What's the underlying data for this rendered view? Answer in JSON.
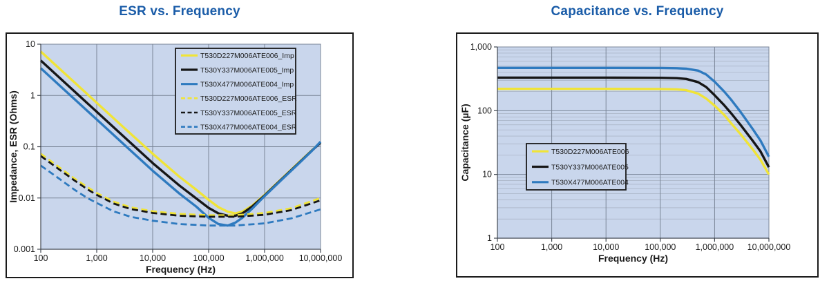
{
  "theme": {
    "title_color": "#1a5ca8",
    "plot_bg": "#c9d6ec",
    "grid_major": "#7a8597",
    "grid_minor": "#9fa9ba",
    "axis_line": "#3f4650",
    "text_color": "#1a1a1a",
    "frame_border": "#1a1a1a",
    "legend_bg": "#c9d6ec",
    "legend_border": "#1a1a1a",
    "series_yellow": "#f0e437",
    "series_black": "#161616",
    "series_blue": "#2e7abf"
  },
  "chart_data": [
    {
      "type": "line",
      "title": "ESR vs. Frequency",
      "xlabel": "Frequency (Hz)",
      "ylabel": "Impedance, ESR (Ohms)",
      "x_scale": "log",
      "y_scale": "log",
      "xlim": [
        100,
        10000000
      ],
      "ylim": [
        0.001,
        10
      ],
      "x_tick_values": [
        100,
        1000,
        10000,
        100000,
        1000000,
        10000000
      ],
      "x_tick_labels": [
        "100",
        "1,000",
        "10,000",
        "100,000",
        "1,000,000",
        "10,000,000"
      ],
      "y_tick_values": [
        10,
        1,
        0.1,
        0.01,
        0.001
      ],
      "y_tick_labels": [
        "10",
        "1",
        "0.1",
        "0.01",
        "0.001"
      ],
      "y_minor_grid": false,
      "grid": true,
      "legend_position": "upper-right",
      "series": [
        {
          "name": "T530D227M006ATE006_Imp",
          "color": "#f0e437",
          "style": "solid",
          "x": [
            100,
            300,
            1000,
            3000,
            10000,
            30000,
            60000,
            100000,
            150000,
            220000,
            300000,
            400000,
            600000,
            1000000,
            2000000,
            4000000,
            7000000,
            10000000
          ],
          "y": [
            7.2,
            2.4,
            0.72,
            0.24,
            0.073,
            0.026,
            0.0145,
            0.0092,
            0.0066,
            0.0054,
            0.005,
            0.0054,
            0.0071,
            0.0115,
            0.0235,
            0.048,
            0.085,
            0.122
          ]
        },
        {
          "name": "T530Y337M006ATE005_Imp",
          "color": "#161616",
          "style": "solid",
          "x": [
            100,
            300,
            1000,
            3000,
            10000,
            30000,
            60000,
            100000,
            150000,
            220000,
            300000,
            400000,
            600000,
            1000000,
            2000000,
            4000000,
            7000000,
            10000000
          ],
          "y": [
            4.8,
            1.6,
            0.48,
            0.16,
            0.048,
            0.0175,
            0.0098,
            0.0064,
            0.005,
            0.0045,
            0.0045,
            0.005,
            0.0068,
            0.0112,
            0.023,
            0.047,
            0.084,
            0.12
          ]
        },
        {
          "name": "T530X477M006ATE004_Imp",
          "color": "#2e7abf",
          "style": "solid",
          "x": [
            100,
            300,
            1000,
            3000,
            10000,
            30000,
            60000,
            100000,
            150000,
            220000,
            300000,
            400000,
            600000,
            1000000,
            2000000,
            4000000,
            7000000,
            10000000
          ],
          "y": [
            3.4,
            1.13,
            0.34,
            0.113,
            0.034,
            0.0122,
            0.0068,
            0.0041,
            0.0031,
            0.0029,
            0.0033,
            0.0041,
            0.0062,
            0.0109,
            0.0225,
            0.046,
            0.083,
            0.125
          ]
        },
        {
          "name": "T530D227M006ATE006_ESR",
          "color": "#f0e437",
          "style": "dashed",
          "x": [
            100,
            200,
            400,
            700,
            1000,
            2000,
            4000,
            10000,
            30000,
            100000,
            300000,
            1000000,
            3000000,
            10000000
          ],
          "y": [
            0.073,
            0.042,
            0.024,
            0.016,
            0.0125,
            0.0085,
            0.0066,
            0.0055,
            0.0049,
            0.0046,
            0.0046,
            0.0051,
            0.0063,
            0.01
          ]
        },
        {
          "name": "T530Y337M006ATE005_ESR",
          "color": "#161616",
          "style": "dashed",
          "x": [
            100,
            200,
            400,
            700,
            1000,
            2000,
            4000,
            10000,
            30000,
            100000,
            300000,
            1000000,
            3000000,
            10000000
          ],
          "y": [
            0.066,
            0.038,
            0.022,
            0.0145,
            0.0115,
            0.0078,
            0.0061,
            0.0051,
            0.0045,
            0.0043,
            0.0043,
            0.0047,
            0.0058,
            0.009
          ]
        },
        {
          "name": "T530X477M006ATE004_ESR",
          "color": "#2e7abf",
          "style": "dashed",
          "x": [
            100,
            200,
            400,
            700,
            1000,
            2000,
            4000,
            10000,
            30000,
            100000,
            300000,
            1000000,
            3000000,
            10000000
          ],
          "y": [
            0.043,
            0.025,
            0.0145,
            0.0098,
            0.008,
            0.0055,
            0.0043,
            0.0036,
            0.0031,
            0.0029,
            0.0029,
            0.0032,
            0.004,
            0.006
          ]
        }
      ]
    },
    {
      "type": "line",
      "title": "Capacitance vs. Frequency",
      "xlabel": "Frequency (Hz)",
      "ylabel": "Capacitance (µF)",
      "x_scale": "log",
      "y_scale": "log",
      "xlim": [
        100,
        10000000
      ],
      "ylim": [
        1,
        1000
      ],
      "x_tick_values": [
        100,
        1000,
        10000,
        100000,
        1000000,
        10000000
      ],
      "x_tick_labels": [
        "100",
        "1,000",
        "10,000",
        "100,000",
        "1,000,000",
        "10,000,000"
      ],
      "y_tick_values": [
        1000,
        100,
        10,
        1
      ],
      "y_tick_labels": [
        "1,000",
        "100",
        "10",
        "1"
      ],
      "y_minor_grid": true,
      "grid": true,
      "legend_position": "middle-left",
      "series": [
        {
          "name": "T530D227M006ATE006",
          "color": "#f0e437",
          "style": "solid",
          "x": [
            100,
            1000,
            10000,
            100000,
            200000,
            300000,
            500000,
            700000,
            1000000,
            1500000,
            2000000,
            3000000,
            5000000,
            7000000,
            10000000
          ],
          "y": [
            220,
            220,
            220,
            219,
            216,
            210,
            185,
            155,
            120,
            86,
            64,
            43,
            25,
            17,
            10
          ]
        },
        {
          "name": "T530Y337M006ATE005",
          "color": "#161616",
          "style": "solid",
          "x": [
            100,
            1000,
            10000,
            100000,
            200000,
            300000,
            500000,
            700000,
            1000000,
            1500000,
            2000000,
            3000000,
            5000000,
            7000000,
            10000000
          ],
          "y": [
            330,
            330,
            330,
            328,
            324,
            315,
            280,
            235,
            175,
            122,
            92,
            60,
            34,
            23,
            13
          ]
        },
        {
          "name": "T530X477M006ATE004",
          "color": "#2e7abf",
          "style": "solid",
          "x": [
            100,
            1000,
            10000,
            100000,
            200000,
            300000,
            500000,
            700000,
            1000000,
            1500000,
            2000000,
            3000000,
            5000000,
            7000000,
            10000000
          ],
          "y": [
            470,
            470,
            470,
            468,
            464,
            456,
            425,
            370,
            285,
            200,
            150,
            96,
            52,
            34,
            19
          ]
        }
      ]
    }
  ]
}
